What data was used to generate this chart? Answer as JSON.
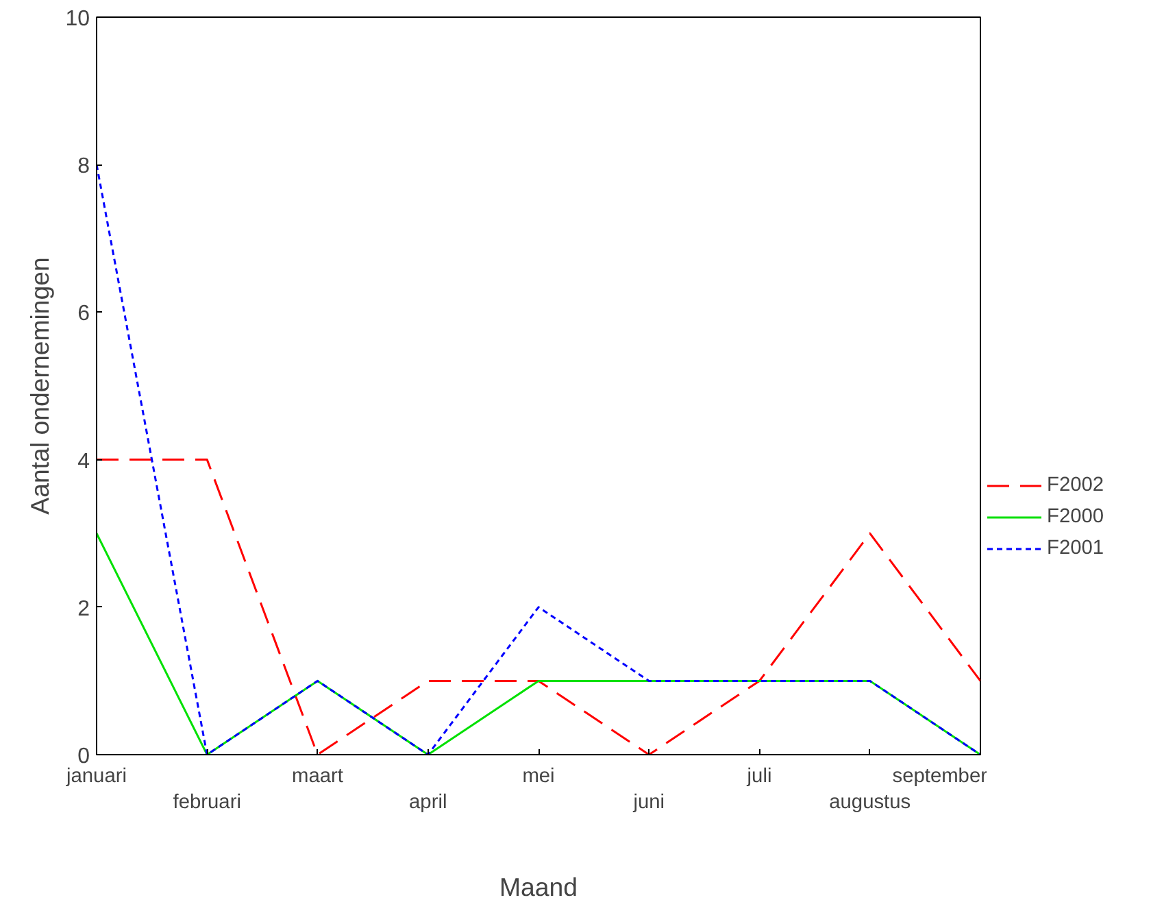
{
  "chart_data": {
    "type": "line",
    "xlabel": "Maand",
    "ylabel": "Aantal ondernemingen",
    "categories": [
      "januari",
      "februari",
      "maart",
      "april",
      "mei",
      "juni",
      "juli",
      "augustus",
      "september"
    ],
    "series": [
      {
        "name": "F2002",
        "color": "#ff0000",
        "line_style": "dashed",
        "values": [
          4,
          4,
          0,
          1,
          1,
          0,
          1,
          3,
          1
        ]
      },
      {
        "name": "F2000",
        "color": "#00e000",
        "line_style": "solid",
        "values": [
          3,
          0,
          1,
          0,
          1,
          1,
          1,
          1,
          0
        ]
      },
      {
        "name": "F2001",
        "color": "#0000ff",
        "line_style": "dotted",
        "values": [
          8,
          0,
          1,
          0,
          2,
          1,
          1,
          1,
          0
        ]
      }
    ],
    "ylim": [
      0,
      10
    ],
    "yticks": [
      0,
      2,
      4,
      6,
      8,
      10
    ],
    "grid": false,
    "legend": "right",
    "marker": "none"
  }
}
